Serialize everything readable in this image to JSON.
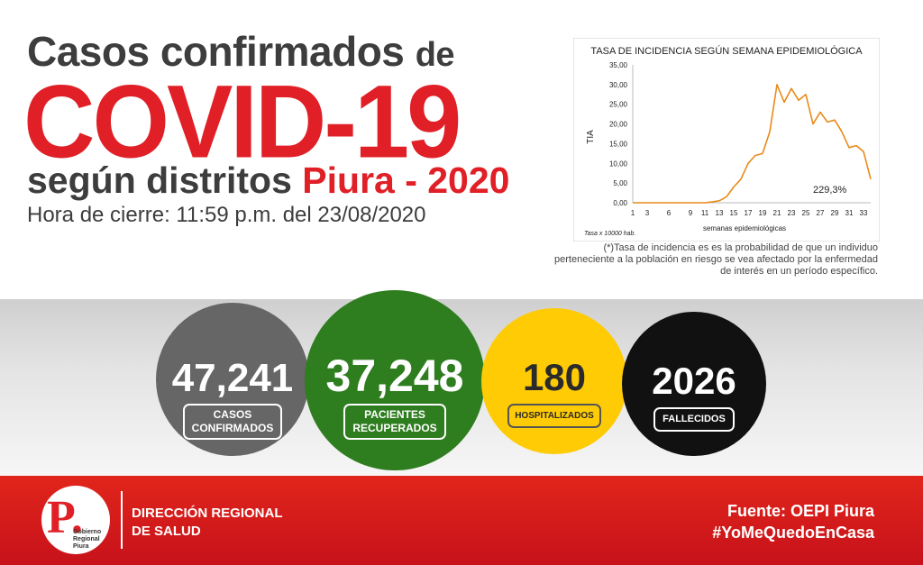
{
  "header": {
    "line1_main": "Casos confirmados",
    "line1_small": "de",
    "line2": "COVID-19",
    "line3_main": "según distritos",
    "line3_red": "Piura - 2020",
    "closing_time": "Hora de cierre: 11:59 p.m. del 23/08/2020"
  },
  "chart_data": {
    "type": "line",
    "title": "TASA DE INCIDENCIA SEGÚN SEMANA EPIDEMIOLÓGICA",
    "xlabel": "semanas epidemiológicas",
    "ylabel": "TIA",
    "x_ticks": [
      1,
      3,
      6,
      9,
      11,
      13,
      15,
      17,
      19,
      21,
      23,
      25,
      27,
      29,
      31,
      33
    ],
    "y_ticks": [
      "0,00",
      "5,00",
      "10,00",
      "15,00",
      "20,00",
      "25,00",
      "30,00",
      "35,00"
    ],
    "ylim": [
      0,
      35
    ],
    "xlim": [
      1,
      34
    ],
    "annotation": "229,3%",
    "footnote": "Tasa x 10000 hab.",
    "color": "#e88a1a",
    "x": [
      1,
      2,
      3,
      4,
      5,
      6,
      7,
      8,
      9,
      10,
      11,
      12,
      13,
      14,
      15,
      16,
      17,
      18,
      19,
      20,
      21,
      22,
      23,
      24,
      25,
      26,
      27,
      28,
      29,
      30,
      31,
      32,
      33,
      34
    ],
    "y": [
      0,
      0,
      0,
      0,
      0,
      0,
      0,
      0,
      0,
      0,
      0,
      0.2,
      0.5,
      1.5,
      4,
      6,
      10,
      12,
      12.5,
      18,
      30,
      25.5,
      29,
      26,
      27.5,
      20,
      23,
      20.5,
      21,
      18,
      14,
      14.5,
      13,
      6
    ]
  },
  "chart_note": "(*)Tasa de incidencia es es la probabilidad de que un individuo perteneciente a la población en riesgo se vea afectado por la enfermedad de interés en un período específico.",
  "stats": [
    {
      "value": "47,241",
      "label_1": "CASOS",
      "label_2": "CONFIRMADOS",
      "color": "#666666"
    },
    {
      "value": "37,248",
      "label_1": "PACIENTES",
      "label_2": "RECUPERADOS",
      "color": "#2e7d1e"
    },
    {
      "value": "180",
      "label_1": "HOSPITALIZADOS",
      "color": "#ffcb05"
    },
    {
      "value": "2026",
      "label_1": "FALLECIDOS",
      "color": "#111111"
    }
  ],
  "footer": {
    "logo_letter": "P.",
    "logo_text_1": "Gobierno",
    "logo_text_2": "Regional",
    "logo_text_3": "Piura",
    "direction_1": "DIRECCIÓN REGIONAL",
    "direction_2": "DE SALUD",
    "source": "Fuente: OEPI Piura",
    "hashtag": "#YoMeQuedoEnCasa",
    "color": "#e01f26"
  }
}
